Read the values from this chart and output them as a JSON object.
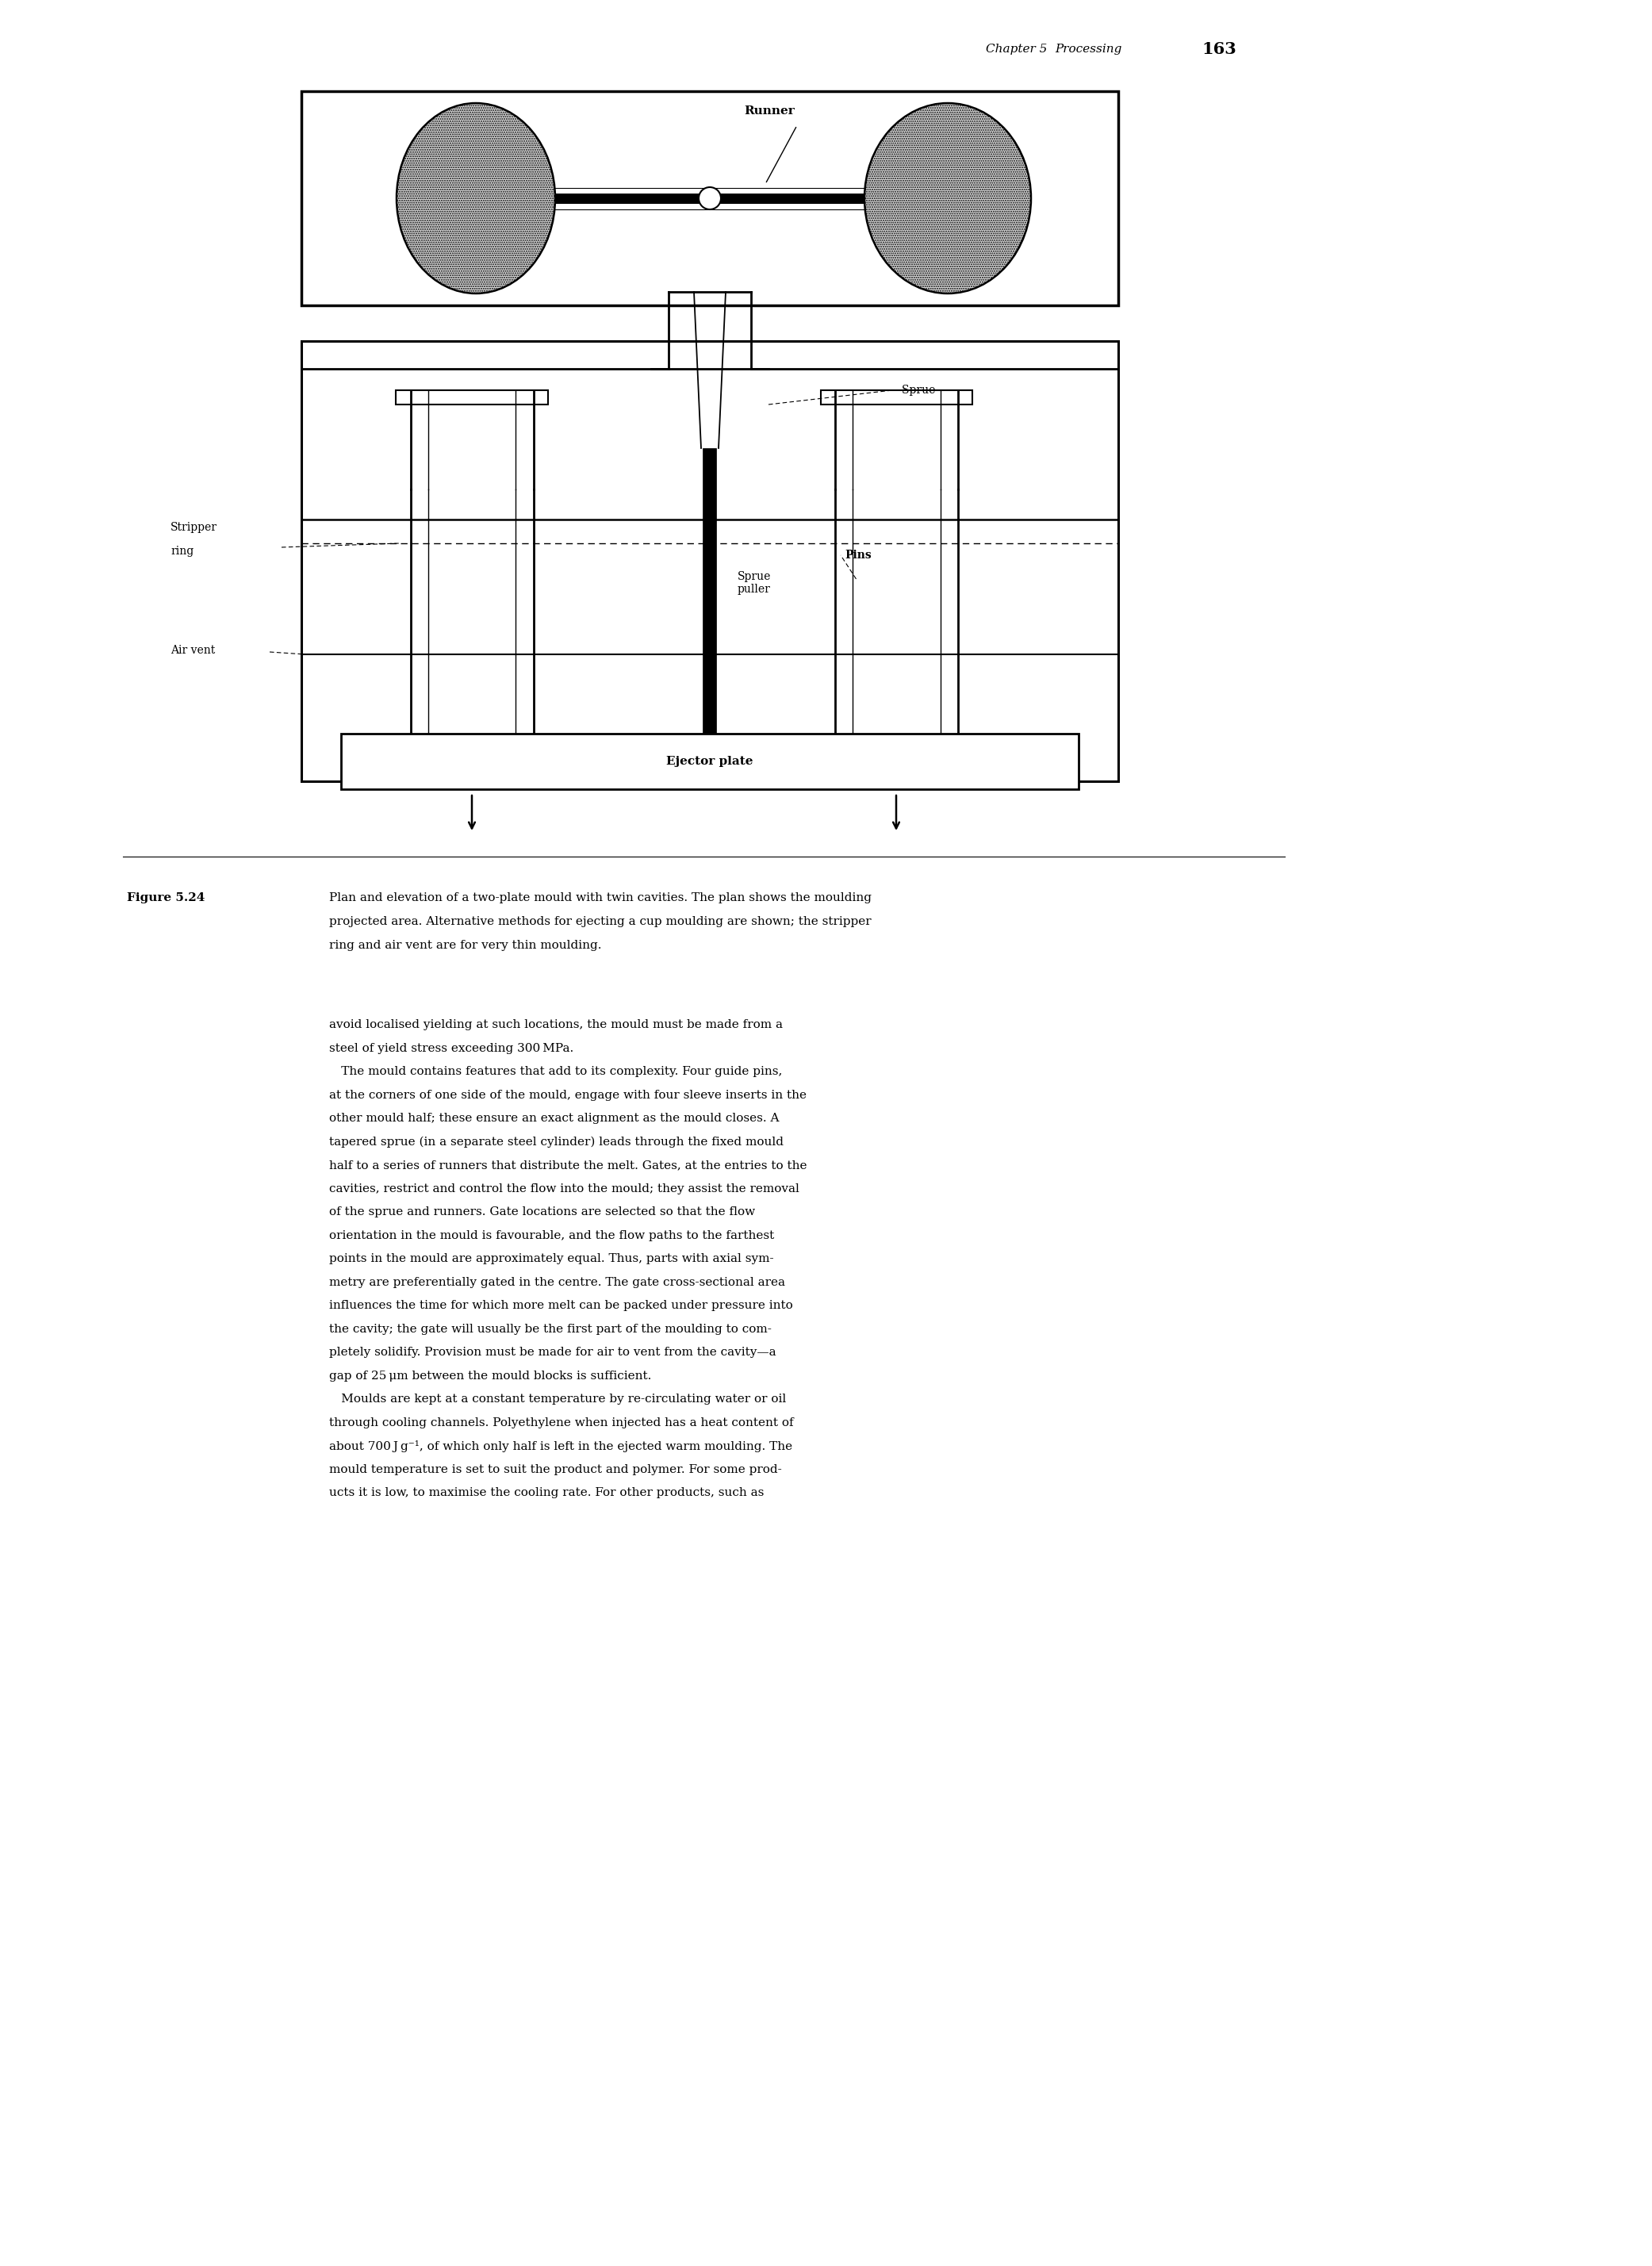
{
  "page_width": 20.63,
  "page_height": 28.37,
  "bg_color": "#ffffff",
  "caption_line1": "Plan and elevation of a two-plate mould with twin cavities. The plan shows the moulding",
  "caption_line2": "projected area. Alternative methods for ejecting a cup moulding are shown; the stripper",
  "caption_line3": "ring and air vent are for very thin moulding.",
  "body_text": [
    "avoid localised yielding at such locations, the mould must be made from a",
    "steel of yield stress exceeding 300 MPa.",
    " The mould contains features that add to its complexity. Four guide pins,",
    "at the corners of one side of the mould, engage with four sleeve inserts in the",
    "other mould half; these ensure an exact alignment as the mould closes. A",
    "tapered sprue (in a separate steel cylinder) leads through the fixed mould",
    "half to a series of runners that distribute the melt. Gates, at the entries to the",
    "cavities, restrict and control the flow into the mould; they assist the removal",
    "of the sprue and runners. Gate locations are selected so that the flow",
    "orientation in the mould is favourable, and the flow paths to the farthest",
    "points in the mould are approximately equal. Thus, parts with axial sym-",
    "metry are preferentially gated in the centre. The gate cross-sectional area",
    "influences the time for which more melt can be packed under pressure into",
    "the cavity; the gate will usually be the first part of the moulding to com-",
    "pletely solidify. Provision must be made for air to vent from the cavity—a",
    "gap of 25 μm between the mould blocks is sufficient.",
    " Moulds are kept at a constant temperature by re-circulating water or oil",
    "through cooling channels. Polyethylene when injected has a heat content of",
    "about 700 J g⁻¹, of which only half is left in the ejected warm moulding. The",
    "mould temperature is set to suit the product and polymer. For some prod-",
    "ucts it is low, to maximise the cooling rate. For other products, such as"
  ]
}
